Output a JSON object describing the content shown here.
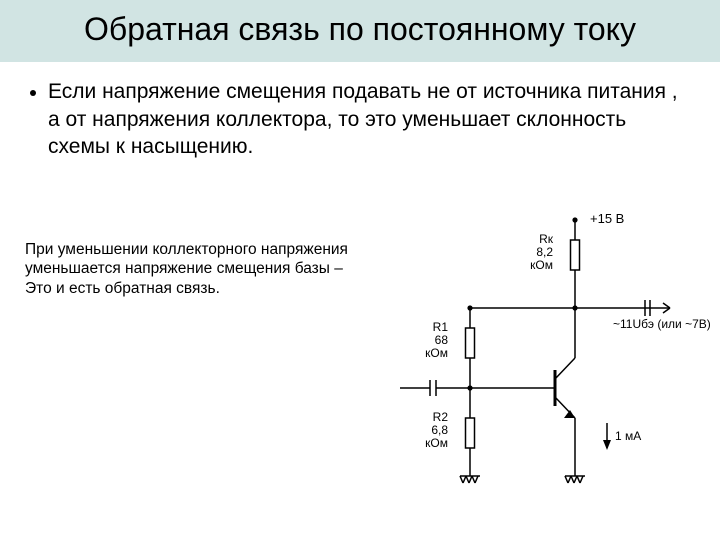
{
  "slide": {
    "title": "Обратная связь по постоянному току",
    "bullet": "Если напряжение смещения подавать не от источника питания , а от напряжения коллектора, то это уменьшает склонность схемы к насыщению.",
    "caption_l1": "При уменьшении коллекторного напряжения",
    "caption_l2": "уменьшается напряжение смещения базы –",
    "caption_l3": "Это и есть обратная связь."
  },
  "circuit": {
    "supply": "+15 В",
    "Rk_name": "Rк",
    "Rk_val1": "8,2",
    "Rk_val2": "кОм",
    "R1_name": "R1",
    "R1_val1": "68",
    "R1_val2": "кОм",
    "R2_name": "R2",
    "R2_val1": "6,8",
    "R2_val2": "кОм",
    "out_note": "~11Uбэ (или ~7В)",
    "i_emitter": "1 мА",
    "stroke": "#000000",
    "stroke_width": 1.5,
    "font_size": 13,
    "label_font_size": 12
  }
}
